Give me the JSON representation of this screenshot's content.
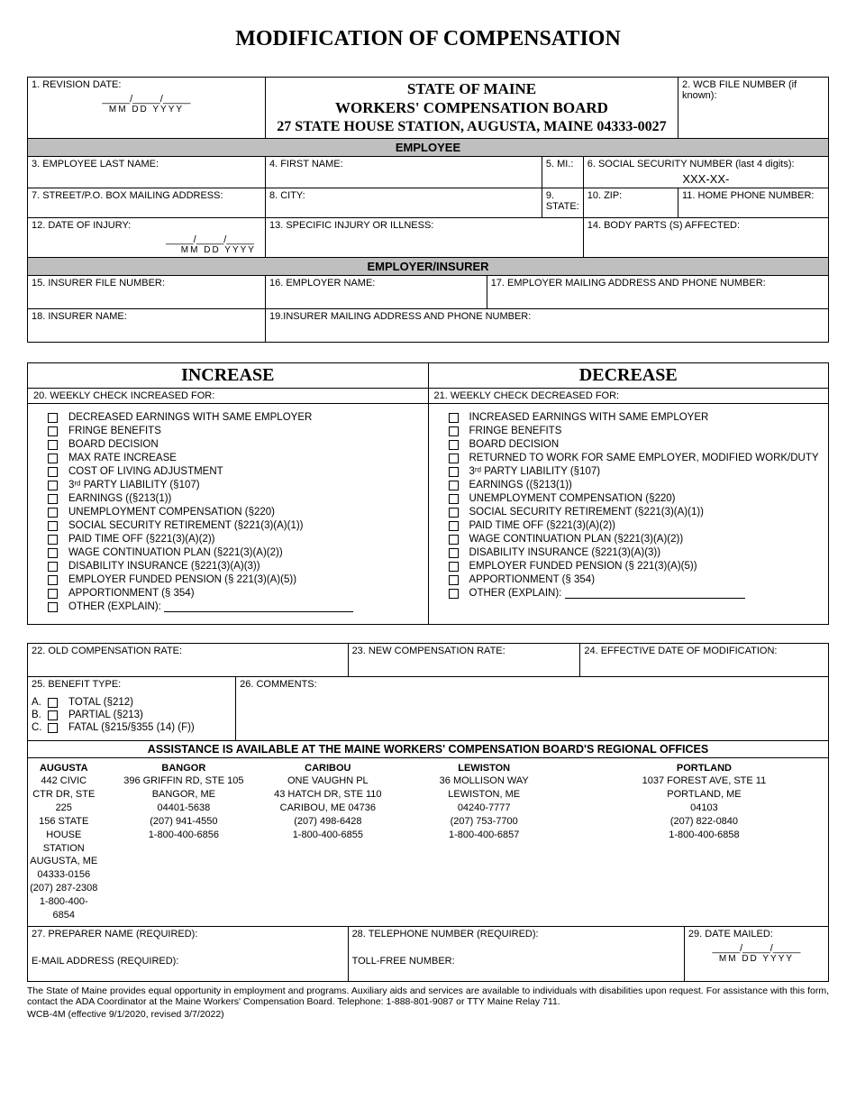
{
  "title": "MODIFICATION OF COMPENSATION",
  "header": {
    "state": "STATE OF MAINE",
    "board": "WORKERS' COMPENSATION BOARD",
    "address": "27 STATE HOUSE STATION, AUGUSTA, MAINE 04333-0027"
  },
  "fields": {
    "f1": "1. REVISION DATE:",
    "f2": "2. WCB FILE NUMBER (if known):",
    "f3": "3. EMPLOYEE LAST NAME:",
    "f4": "4. FIRST NAME:",
    "f5": "5. MI.:",
    "f6": "6. SOCIAL SECURITY NUMBER (last 4 digits):",
    "f6v": "XXX-XX-",
    "f7": "7. STREET/P.O. BOX MAILING ADDRESS:",
    "f8": "8. CITY:",
    "f9": "9. STATE:",
    "f10": "10. ZIP:",
    "f11": "11. HOME PHONE NUMBER:",
    "f12": "12. DATE OF INJURY:",
    "f13": "13. SPECIFIC INJURY OR ILLNESS:",
    "f14": "14. BODY PARTS (S) AFFECTED:",
    "f15": "15. INSURER FILE NUMBER:",
    "f16": "16. EMPLOYER NAME:",
    "f17": "17. EMPLOYER MAILING ADDRESS AND PHONE NUMBER:",
    "f18": "18. INSURER NAME:",
    "f19": "19.INSURER MAILING ADDRESS AND PHONE NUMBER:",
    "f20": "20.  WEEKLY CHECK INCREASED FOR:",
    "f21": "21.  WEEKLY CHECK DECREASED FOR:",
    "f22": "22. OLD COMPENSATION RATE:",
    "f23": "23. NEW COMPENSATION RATE:",
    "f24": "24. EFFECTIVE DATE OF MODIFICATION:",
    "f25": "25. BENEFIT TYPE:",
    "f26": "26. COMMENTS:",
    "f27": "27. PREPARER NAME (REQUIRED):",
    "f27b": "E-MAIL ADDRESS (REQUIRED):",
    "f28": "28. TELEPHONE NUMBER (REQUIRED):",
    "f28b": "TOLL-FREE NUMBER:",
    "f29": "29. DATE MAILED:"
  },
  "sections": {
    "employee": "EMPLOYEE",
    "employer": "EMPLOYER/INSURER",
    "increase": "INCREASE",
    "decrease": "DECREASE",
    "assist": "ASSISTANCE IS AVAILABLE AT THE MAINE WORKERS' COMPENSATION BOARD'S REGIONAL OFFICES"
  },
  "date_blank": "_____/_____/_____",
  "date_labels": "MM   DD   YYYY",
  "increase_items": [
    "DECREASED EARNINGS WITH SAME EMPLOYER",
    "FRINGE BENEFITS",
    "BOARD DECISION",
    "MAX RATE INCREASE",
    "COST OF LIVING ADJUSTMENT",
    "3ʳᵈ PARTY LIABILITY (§107)",
    "EARNINGS ((§213(1))",
    "UNEMPLOYMENT COMPENSATION (§220)",
    "SOCIAL SECURITY RETIREMENT (§221(3)(A)(1))",
    "PAID TIME OFF (§221(3)(A)(2))",
    "WAGE CONTINUATION PLAN (§221(3)(A)(2))",
    "DISABILITY INSURANCE (§221(3)(A)(3))",
    "EMPLOYER FUNDED PENSION (§ 221(3)(A)(5))",
    "APPORTIONMENT (§ 354)"
  ],
  "increase_other": "OTHER (EXPLAIN): ",
  "decrease_items": [
    "INCREASED EARNINGS WITH SAME EMPLOYER",
    "FRINGE BENEFITS",
    "BOARD DECISION",
    "RETURNED TO WORK FOR SAME EMPLOYER, MODIFIED WORK/DUTY",
    "3ʳᵈ PARTY LIABILITY (§107)",
    "EARNINGS ((§213(1))",
    "UNEMPLOYMENT COMPENSATION (§220)",
    "SOCIAL SECURITY RETIREMENT (§221(3)(A)(1))",
    "PAID TIME OFF (§221(3)(A)(2))",
    "WAGE CONTINUATION PLAN (§221(3)(A)(2))",
    "DISABILITY INSURANCE (§221(3)(A)(3))",
    "EMPLOYER FUNDED PENSION (§ 221(3)(A)(5))",
    "APPORTIONMENT (§ 354)"
  ],
  "decrease_other": "OTHER (EXPLAIN): ",
  "benefits": [
    {
      "ltr": "A.",
      "txt": "TOTAL (§212)"
    },
    {
      "ltr": "B.",
      "txt": "PARTIAL (§213)"
    },
    {
      "ltr": "C.",
      "txt": "FATAL (§215/§355 (14) (F))"
    }
  ],
  "offices": [
    {
      "name": "AUGUSTA",
      "l1": "442 CIVIC CTR DR, STE 225",
      "l2": "156 STATE HOUSE STATION",
      "l3": "AUGUSTA, ME 04333-0156",
      "l4": "(207) 287-2308",
      "l5": "1-800-400-6854"
    },
    {
      "name": "BANGOR",
      "l1": "396 GRIFFIN RD, STE 105",
      "l2": "BANGOR, ME",
      "l3": "04401-5638",
      "l4": "(207) 941-4550",
      "l5": "1-800-400-6856"
    },
    {
      "name": "CARIBOU",
      "l1": "ONE VAUGHN PL",
      "l2": "43 HATCH DR, STE 110",
      "l3": "CARIBOU, ME 04736",
      "l4": "(207) 498-6428",
      "l5": "1-800-400-6855"
    },
    {
      "name": "LEWISTON",
      "l1": "36 MOLLISON WAY",
      "l2": "LEWISTON, ME",
      "l3": "04240-7777",
      "l4": "(207) 753-7700",
      "l5": "1-800-400-6857"
    },
    {
      "name": "PORTLAND",
      "l1": "1037 FOREST AVE, STE 11",
      "l2": "PORTLAND, ME",
      "l3": "04103",
      "l4": "(207) 822-0840",
      "l5": "1-800-400-6858"
    }
  ],
  "footer": "The State of Maine provides equal opportunity in employment and programs.  Auxiliary aids and services are available to individuals with disabilities upon request.  For assistance with this form, contact the ADA Coordinator at the Maine Workers' Compensation Board. Telephone: 1-888-801-9087 or TTY Maine Relay 711.",
  "form_id": "WCB-4M (effective 9/1/2020, revised 3/7/2022)"
}
